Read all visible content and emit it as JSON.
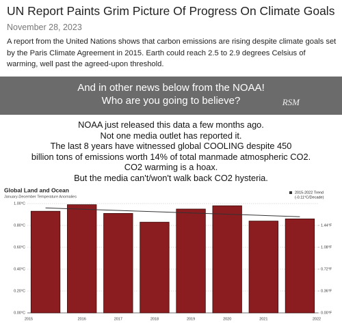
{
  "header": {
    "title": "UN Report Paints Grim Picture Of Progress On Climate Goals",
    "date": "November 28, 2023",
    "paragraph": "A report from the United Nations shows that carbon emissions are rising despite climate goals set by the Paris Climate Agreement in 2015. Earth could reach 2.5 to 2.9 degrees Celsius of warming, well past the agreed-upon threshold."
  },
  "banner": {
    "lines": [
      "And in other news below from the NOAA!",
      "Who are you going to believe?"
    ],
    "signature": "RSM"
  },
  "claims": [
    "NOAA just released this data a few months ago.",
    "Not one media outlet has reported it.",
    "The last 8 years have witnessed global COOLING despite 450",
    "billion tons of emissions worth 14% of total manmade atmospheric CO2.",
    "CO2 warming is a hoax.",
    "But the media can't/won't walk back CO2 hysteria."
  ],
  "chart_data": {
    "type": "bar",
    "title": "Global Land and Ocean",
    "subtitle": "January-December Temperature Anomalies",
    "categories": [
      "2015",
      "2016",
      "2017",
      "2018",
      "2019",
      "2020",
      "2021",
      "2022"
    ],
    "values": [
      0.93,
      0.99,
      0.91,
      0.83,
      0.95,
      0.98,
      0.84,
      0.86
    ],
    "color": "#8b1c1f",
    "ylim": [
      0,
      1.0
    ],
    "yticks": [
      {
        "value": 0,
        "label": "0.00°C"
      },
      {
        "value": 0.2,
        "label": "0.20°C"
      },
      {
        "value": 0.4,
        "label": "0.40°C"
      },
      {
        "value": 0.6,
        "label": "0.60°C"
      },
      {
        "value": 0.8,
        "label": "0.80°C"
      },
      {
        "value": 1.0,
        "label": "1.00°C"
      }
    ],
    "y2lim": [
      0,
      1.8
    ],
    "y2ticks": [
      {
        "value": 0,
        "label": "0.00°F"
      },
      {
        "value": 0.36,
        "label": "0.36°F"
      },
      {
        "value": 0.72,
        "label": "0.72°F"
      },
      {
        "value": 1.08,
        "label": "1.08°F"
      },
      {
        "value": 1.44,
        "label": "1.44°F"
      }
    ],
    "trend": {
      "name": "2015-2022 Trend",
      "rate": "(-0.11°C/Decade)",
      "color": "#333333",
      "values": [
        0.96,
        0.88
      ]
    },
    "grid": true
  }
}
